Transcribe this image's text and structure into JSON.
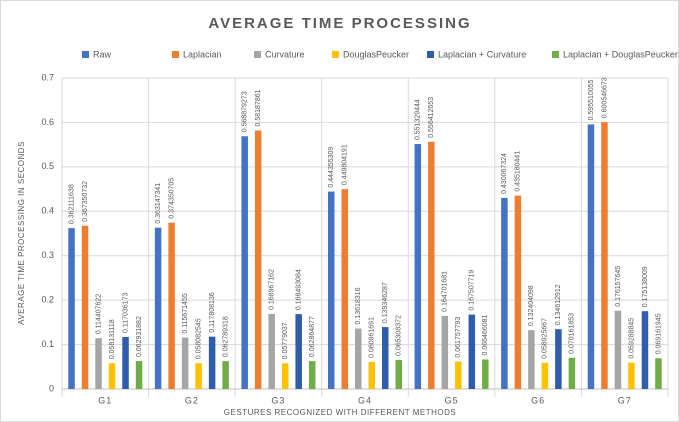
{
  "chart_data": {
    "type": "bar",
    "title": "AVERAGE TIME PROCESSING",
    "x_label": "GESTURES RECOGNIZED WITH DIFFERENT METHODS",
    "y_label": "AVERAGE TIME PROCESSING IN SECONDS",
    "categories": [
      "G1",
      "G2",
      "G3",
      "G4",
      "G5",
      "G6",
      "G7"
    ],
    "series": [
      {
        "name": "Raw",
        "color": "#4472c4",
        "values": [
          0.362111638,
          0.363147341,
          0.568879273,
          0.444355309,
          0.551329444,
          0.430067324,
          0.595510055
        ]
      },
      {
        "name": "Laplacian",
        "color": "#ed7d31",
        "values": [
          0.367350732,
          0.374350705,
          0.58187861,
          0.449804191,
          0.556412653,
          0.435180441,
          0.600546673
        ]
      },
      {
        "name": "Curvature",
        "color": "#a5a5a5",
        "values": [
          0.114407622,
          0.115671455,
          0.168967162,
          0.13618316,
          0.164701681,
          0.132404098,
          0.176157645
        ]
      },
      {
        "name": "DouglasPeucker",
        "color": "#ffc000",
        "values": [
          0.058131118,
          0.058082545,
          0.05779037,
          0.060961691,
          0.061757793,
          0.058925667,
          0.059288845
        ]
      },
      {
        "name": "Laplacian + Curvature",
        "color": "#2f5cab",
        "values": [
          0.117036173,
          0.117808136,
          0.168493084,
          0.139346287,
          0.167507719,
          0.134612912,
          0.175138009
        ]
      },
      {
        "name": "Laplacian + DouglasPeucker",
        "color": "#70ad47",
        "values": [
          0.062931882,
          0.062789318,
          0.062864877,
          0.065308372,
          0.066466081,
          0.070161853,
          0.069161945
        ]
      }
    ],
    "ylim": [
      0,
      0.7
    ],
    "yticks": [
      0,
      0.1,
      0.2,
      0.3,
      0.4,
      0.5,
      0.6,
      0.7
    ],
    "grid": true,
    "legend": "top"
  }
}
